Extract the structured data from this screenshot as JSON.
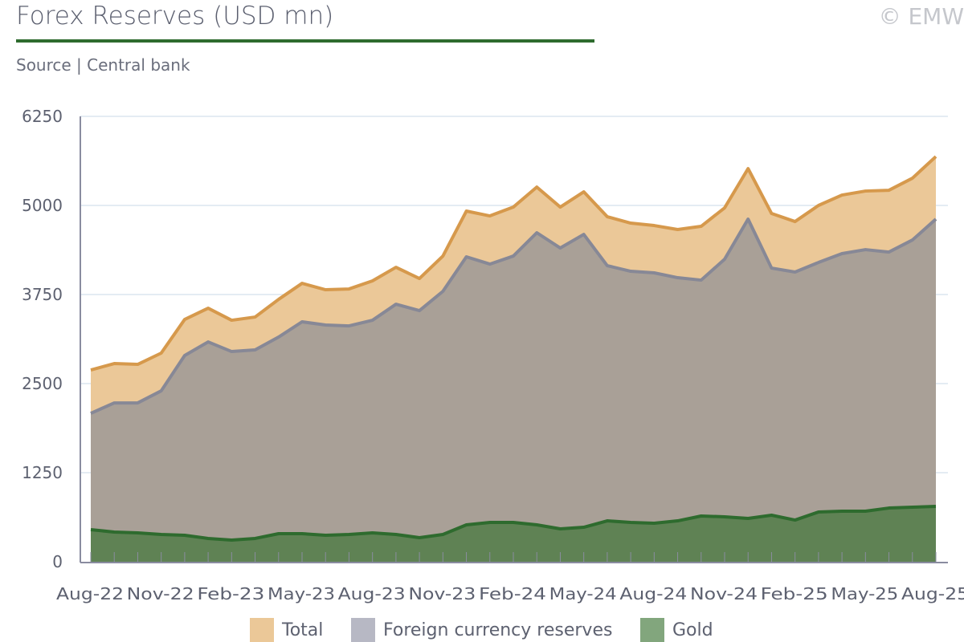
{
  "header": {
    "title": "Forex Reserves (USD mn)",
    "source": "Source | Central bank",
    "copyright": "© EMW"
  },
  "colors": {
    "total_fill": "#ebc898",
    "total_line": "#d6994c",
    "fx_fill": "#a9a097",
    "fx_line": "#878896",
    "gold_fill": "#5f8254",
    "gold_line": "#2e6b2e",
    "grid": "#dbe6ef",
    "axis": "#8a8ca0"
  },
  "chart_data": {
    "type": "area",
    "title": "Forex Reserves (USD mn)",
    "xlabel": "",
    "ylabel": "",
    "ylim": [
      0,
      6250
    ],
    "yticks": [
      "0",
      "1250",
      "2500",
      "3750",
      "5000",
      "6250"
    ],
    "xtick_labels": [
      "Aug-22",
      "Nov-22",
      "Feb-23",
      "May-23",
      "Aug-23",
      "Nov-23",
      "Feb-24",
      "May-24",
      "Aug-24",
      "Nov-24",
      "Feb-25",
      "May-25",
      "Aug-25"
    ],
    "x": [
      "Aug-22",
      "Sep-22",
      "Oct-22",
      "Nov-22",
      "Dec-22",
      "Jan-23",
      "Feb-23",
      "Mar-23",
      "Apr-23",
      "May-23",
      "Jun-23",
      "Jul-23",
      "Aug-23",
      "Sep-23",
      "Oct-23",
      "Nov-23",
      "Dec-23",
      "Jan-24",
      "Feb-24",
      "Mar-24",
      "Apr-24",
      "May-24",
      "Jun-24",
      "Jul-24",
      "Aug-24",
      "Sep-24",
      "Oct-24",
      "Nov-24",
      "Dec-24",
      "Jan-25",
      "Feb-25",
      "Mar-25",
      "Apr-25",
      "May-25",
      "Jun-25",
      "Jul-25",
      "Aug-25"
    ],
    "grid": true,
    "legend_position": "bottom-center",
    "series": [
      {
        "name": "Total",
        "values": [
          2691,
          2781,
          2770,
          2928,
          3400,
          3558,
          3389,
          3434,
          3682,
          3907,
          3817,
          3828,
          3941,
          4132,
          3975,
          4290,
          4921,
          4853,
          4977,
          5258,
          4977,
          5191,
          4842,
          4752,
          4718,
          4662,
          4707,
          4966,
          5517,
          4887,
          4774,
          5000,
          5146,
          5202,
          5213,
          5382,
          5686
        ]
      },
      {
        "name": "Foreign currency reserves",
        "values": [
          2083,
          2229,
          2229,
          2398,
          2894,
          3085,
          2950,
          2973,
          3153,
          3367,
          3322,
          3310,
          3389,
          3614,
          3524,
          3795,
          4279,
          4177,
          4290,
          4617,
          4403,
          4594,
          4155,
          4076,
          4054,
          3986,
          3952,
          4245,
          4808,
          4121,
          4065,
          4200,
          4324,
          4380,
          4346,
          4515,
          4808
        ]
      },
      {
        "name": "Gold",
        "values": [
          450,
          417,
          405,
          383,
          372,
          327,
          304,
          327,
          394,
          394,
          372,
          383,
          405,
          383,
          338,
          383,
          518,
          552,
          552,
          518,
          462,
          484,
          574,
          552,
          540,
          574,
          642,
          631,
          608,
          653,
          585,
          698,
          709,
          709,
          754,
          766,
          777
        ]
      }
    ]
  }
}
